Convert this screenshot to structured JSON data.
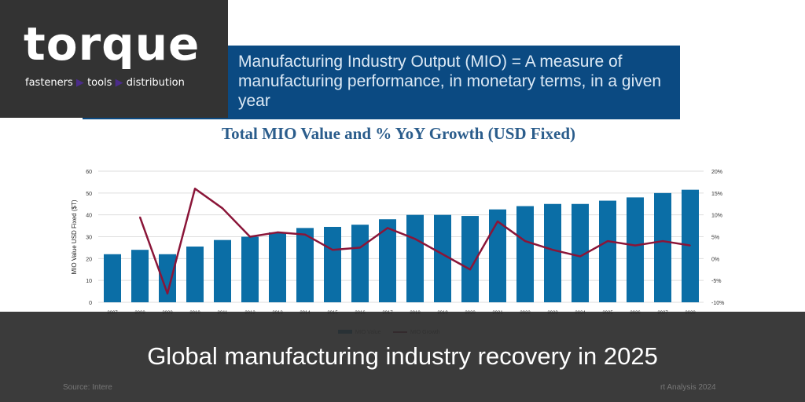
{
  "banner": {
    "line1": "Manufacturing Industry Output (MIO) =  A measure of manufacturing",
    "line2": "performance, in monetary terms, in a given year"
  },
  "logo": {
    "word": "torque",
    "tag": [
      "fasteners",
      "tools",
      "distribution"
    ],
    "accent": "#4b2c8a"
  },
  "caption": "Global manufacturing industry recovery in 2025",
  "source": {
    "left": "Source: Intere",
    "right": "rt Analysis 2024"
  },
  "chart_data": {
    "type": "bar+line",
    "title": "Total MIO Value and % YoY Growth (USD Fixed)",
    "ylabel": "MIO Value USD Fixed ($T)",
    "ylim": [
      0,
      60
    ],
    "y2lim": [
      -10,
      20
    ],
    "yticks": [
      "0",
      "10",
      "20",
      "30",
      "40",
      "50",
      "60"
    ],
    "y2ticks": [
      "-10%",
      "-5%",
      "0%",
      "5%",
      "10%",
      "15%",
      "20%"
    ],
    "grid": true,
    "legend": "bottom",
    "categories": [
      "2007",
      "2008",
      "2009",
      "2010",
      "2011",
      "2012",
      "2013",
      "2014",
      "2015",
      "2016",
      "2017",
      "2018",
      "2019",
      "2020",
      "2021",
      "2022",
      "2023",
      "2024",
      "2025",
      "2026",
      "2027",
      "2028"
    ],
    "series": [
      {
        "name": "MIO Value",
        "type": "bar",
        "color": "#0b6ea6",
        "values": [
          22,
          24,
          22,
          25.5,
          28.5,
          30,
          32,
          34,
          34.5,
          35.5,
          38,
          40,
          40,
          39.5,
          42.5,
          44,
          45,
          45,
          46.5,
          48,
          50,
          51.5
        ]
      },
      {
        "name": "MIO Growth",
        "type": "line",
        "axis": "right",
        "color": "#8a1538",
        "values": [
          null,
          9.5,
          -8,
          16,
          11.5,
          5,
          6,
          5.5,
          2,
          2.5,
          7,
          4.5,
          1,
          -2.5,
          8.5,
          4,
          2,
          0.5,
          4,
          3,
          4,
          3
        ]
      }
    ]
  }
}
